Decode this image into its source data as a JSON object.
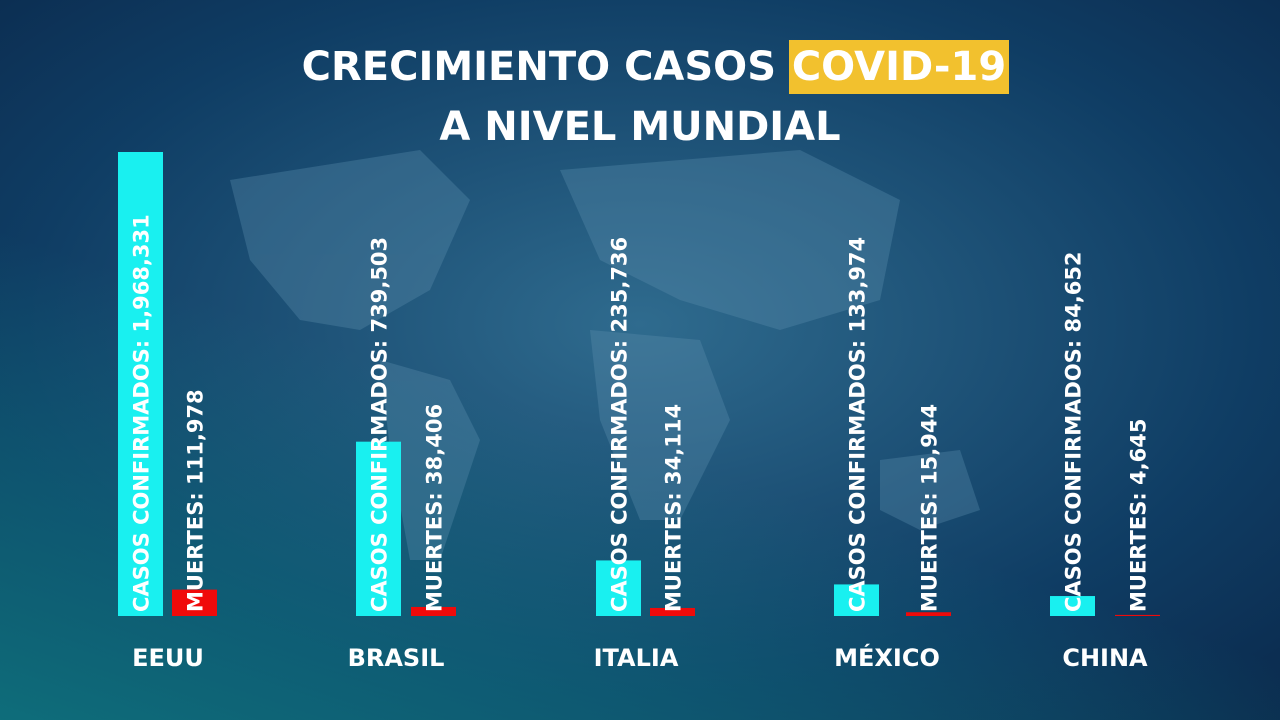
{
  "chart_data": {
    "type": "bar",
    "title": "CRECIMIENTO CASOS",
    "title_highlight": "COVID-19",
    "subtitle": "A NIVEL MUNDIAL",
    "categories": [
      "EEUU",
      "BRASIL",
      "ITALIA",
      "MÉXICO",
      "CHINA"
    ],
    "series": [
      {
        "color": "#19f0f0",
        "values": [
          1968331,
          739503,
          235736,
          133974,
          84652
        ],
        "value_labels": [
          "CASOS CONFIRMADOS: 1,968,331",
          "CASOS CONFIRMADOS: 739,503",
          "CASOS CONFIRMADOS: 235,736",
          "CASOS CONFIRMADOS: 133,974",
          "CASOS CONFIRMADOS: 84,652"
        ]
      },
      {
        "color": "#f00a0a",
        "values": [
          111978,
          38406,
          34114,
          15944,
          4645
        ],
        "value_labels": [
          "MUERTES: 111,978",
          "MUERTES: 38,406",
          "MUERTES: 34,114",
          "MUERTES: 15,944",
          "MUERTES: 4,645"
        ]
      }
    ]
  }
}
